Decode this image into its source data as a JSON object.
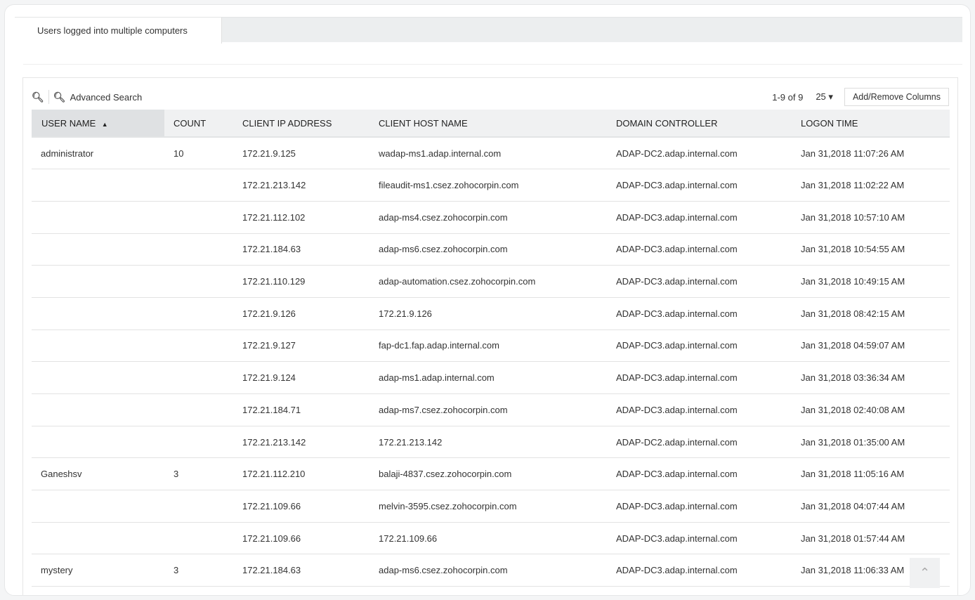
{
  "tab": {
    "label": "Users logged into multiple computers"
  },
  "toolbar": {
    "search_icon": "search-icon",
    "advanced_search_icon": "search-plus-icon",
    "advanced_search": "Advanced Search",
    "pagination": "1-9 of 9",
    "per_page": "25",
    "add_remove_columns": "Add/Remove Columns"
  },
  "table": {
    "columns": [
      "USER NAME",
      "COUNT",
      "CLIENT IP ADDRESS",
      "CLIENT HOST NAME",
      "DOMAIN CONTROLLER",
      "LOGON TIME"
    ],
    "sort": {
      "column": "USER NAME",
      "direction": "ascending"
    },
    "rows": [
      [
        "administrator",
        "10",
        "172.21.9.125",
        "wadap-ms1.adap.internal.com",
        "ADAP-DC2.adap.internal.com",
        "Jan 31,2018 11:07:26 AM"
      ],
      [
        "",
        "",
        "172.21.213.142",
        "fileaudit-ms1.csez.zohocorpin.com",
        "ADAP-DC3.adap.internal.com",
        "Jan 31,2018 11:02:22 AM"
      ],
      [
        "",
        "",
        "172.21.112.102",
        "adap-ms4.csez.zohocorpin.com",
        "ADAP-DC3.adap.internal.com",
        "Jan 31,2018 10:57:10 AM"
      ],
      [
        "",
        "",
        "172.21.184.63",
        "adap-ms6.csez.zohocorpin.com",
        "ADAP-DC3.adap.internal.com",
        "Jan 31,2018 10:54:55 AM"
      ],
      [
        "",
        "",
        "172.21.110.129",
        "adap-automation.csez.zohocorpin.com",
        "ADAP-DC3.adap.internal.com",
        "Jan 31,2018 10:49:15 AM"
      ],
      [
        "",
        "",
        "172.21.9.126",
        "172.21.9.126",
        "ADAP-DC3.adap.internal.com",
        "Jan 31,2018 08:42:15 AM"
      ],
      [
        "",
        "",
        "172.21.9.127",
        "fap-dc1.fap.adap.internal.com",
        "ADAP-DC3.adap.internal.com",
        "Jan 31,2018 04:59:07 AM"
      ],
      [
        "",
        "",
        "172.21.9.124",
        "adap-ms1.adap.internal.com",
        "ADAP-DC3.adap.internal.com",
        "Jan 31,2018 03:36:34 AM"
      ],
      [
        "",
        "",
        "172.21.184.71",
        "adap-ms7.csez.zohocorpin.com",
        "ADAP-DC3.adap.internal.com",
        "Jan 31,2018 02:40:08 AM"
      ],
      [
        "",
        "",
        "172.21.213.142",
        "172.21.213.142",
        "ADAP-DC2.adap.internal.com",
        "Jan 31,2018 01:35:00 AM"
      ],
      [
        "Ganeshsv",
        "3",
        "172.21.112.210",
        "balaji-4837.csez.zohocorpin.com",
        "ADAP-DC3.adap.internal.com",
        "Jan 31,2018 11:05:16 AM"
      ],
      [
        "",
        "",
        "172.21.109.66",
        "melvin-3595.csez.zohocorpin.com",
        "ADAP-DC3.adap.internal.com",
        "Jan 31,2018 04:07:44 AM"
      ],
      [
        "",
        "",
        "172.21.109.66",
        "172.21.109.66",
        "ADAP-DC3.adap.internal.com",
        "Jan 31,2018 01:57:44 AM"
      ],
      [
        "mystery",
        "3",
        "172.21.184.63",
        "adap-ms6.csez.zohocorpin.com",
        "ADAP-DC3.adap.internal.com",
        "Jan 31,2018 11:06:33 AM"
      ]
    ]
  },
  "scroll_top_icon": "chevron-up-icon"
}
